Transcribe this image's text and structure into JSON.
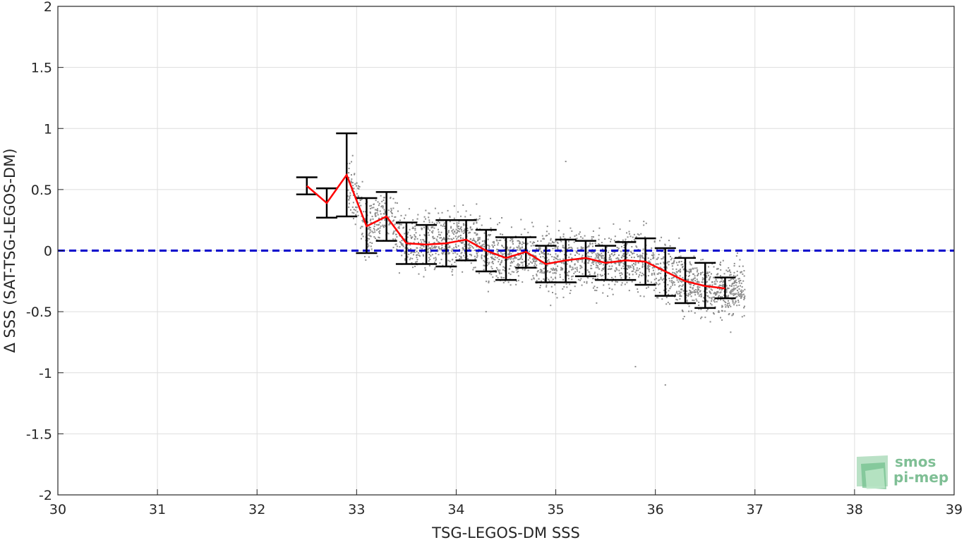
{
  "chart_data": {
    "type": "scatter",
    "xlabel": "TSG-LEGOS-DM SSS",
    "ylabel": "Δ SSS (SAT-TSG-LEGOS-DM)",
    "xlim": [
      30,
      39
    ],
    "ylim": [
      -2,
      2
    ],
    "xticks": [
      30,
      31,
      32,
      33,
      34,
      35,
      36,
      37,
      38,
      39
    ],
    "yticks": [
      -2,
      -1.5,
      -1,
      -0.5,
      0,
      0.5,
      1,
      1.5,
      2
    ],
    "grid": true,
    "zero_line": {
      "y": 0,
      "color": "#0000cc",
      "style": "dashed"
    },
    "mean_line": {
      "color": "#ff0000",
      "x": [
        32.5,
        32.7,
        32.9,
        33.1,
        33.3,
        33.5,
        33.7,
        33.9,
        34.1,
        34.3,
        34.5,
        34.7,
        34.9,
        35.1,
        35.3,
        35.5,
        35.7,
        35.9,
        36.1,
        36.3,
        36.5,
        36.7
      ],
      "y": [
        0.53,
        0.39,
        0.62,
        0.2,
        0.28,
        0.06,
        0.05,
        0.06,
        0.09,
        0.0,
        -0.06,
        -0.01,
        -0.11,
        -0.08,
        -0.06,
        -0.1,
        -0.08,
        -0.09,
        -0.17,
        -0.25,
        -0.29,
        -0.31
      ]
    },
    "error_bars": {
      "color": "#000000",
      "low": [
        0.46,
        0.27,
        0.28,
        -0.02,
        0.08,
        -0.11,
        -0.11,
        -0.13,
        -0.08,
        -0.17,
        -0.24,
        -0.14,
        -0.26,
        -0.26,
        -0.21,
        -0.24,
        -0.24,
        -0.28,
        -0.37,
        -0.43,
        -0.47,
        -0.39
      ],
      "high": [
        0.6,
        0.51,
        0.96,
        0.43,
        0.48,
        0.23,
        0.21,
        0.25,
        0.25,
        0.17,
        0.11,
        0.11,
        0.04,
        0.09,
        0.08,
        0.04,
        0.07,
        0.1,
        0.02,
        -0.06,
        -0.1,
        -0.22
      ]
    },
    "scatter": {
      "color": "#8c8c8c",
      "x_range": [
        32.9,
        36.9
      ],
      "description_points": "dense cloud of grey points following mean trend"
    }
  },
  "logo": {
    "line1": "smos",
    "line2": "pi-mep",
    "color": "#7fbf95"
  }
}
